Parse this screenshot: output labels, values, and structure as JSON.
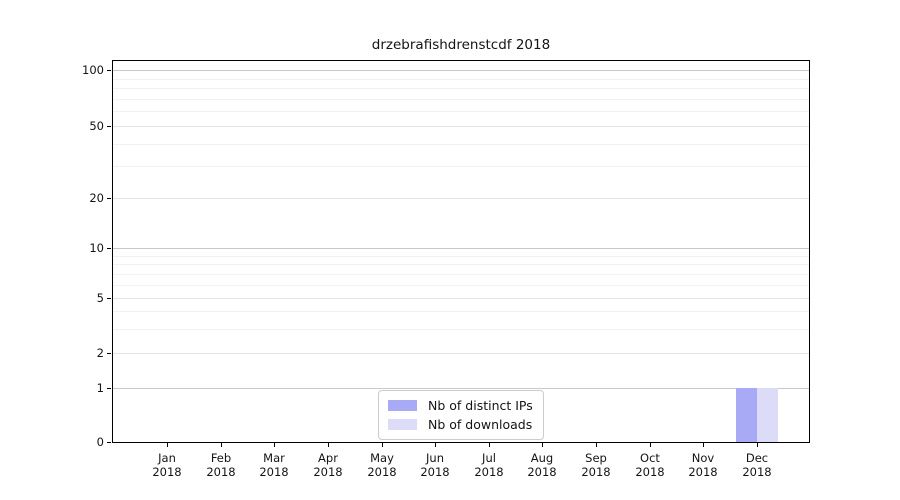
{
  "title": "drzebrafishdrenstcdf 2018",
  "chart_data": {
    "type": "bar",
    "title": "drzebrafishdrenstcdf 2018",
    "categories": [
      "Jan 2018",
      "Feb 2018",
      "Mar 2018",
      "Apr 2018",
      "May 2018",
      "Jun 2018",
      "Jul 2018",
      "Aug 2018",
      "Sep 2018",
      "Oct 2018",
      "Nov 2018",
      "Dec 2018"
    ],
    "series": [
      {
        "name": "Nb of distinct IPs",
        "color": "#a9aaf6",
        "values": [
          0,
          0,
          0,
          0,
          0,
          0,
          0,
          0,
          0,
          0,
          0,
          1
        ]
      },
      {
        "name": "Nb of downloads",
        "color": "#dcdcf9",
        "values": [
          0,
          0,
          0,
          0,
          0,
          0,
          0,
          0,
          0,
          0,
          0,
          1
        ]
      }
    ],
    "xlabel": "",
    "ylabel": "",
    "yscale": "symlog",
    "ylim": [
      0,
      112
    ],
    "y_ticks": [
      0,
      1,
      2,
      5,
      10,
      20,
      50,
      100
    ],
    "y_minor_gridlines": [
      3,
      4,
      6,
      7,
      8,
      9,
      30,
      40,
      60,
      70,
      80,
      90
    ],
    "grid": true,
    "legend_position": "lower center"
  },
  "colors": {
    "grid_major": "#c9c9c9",
    "grid_labeled_minor": "#e3e3e3",
    "grid_minor": "#f2f2f2",
    "spine": "#000000",
    "text": "#141414",
    "background": "#ffffff",
    "legend_border": "#cccccc"
  }
}
